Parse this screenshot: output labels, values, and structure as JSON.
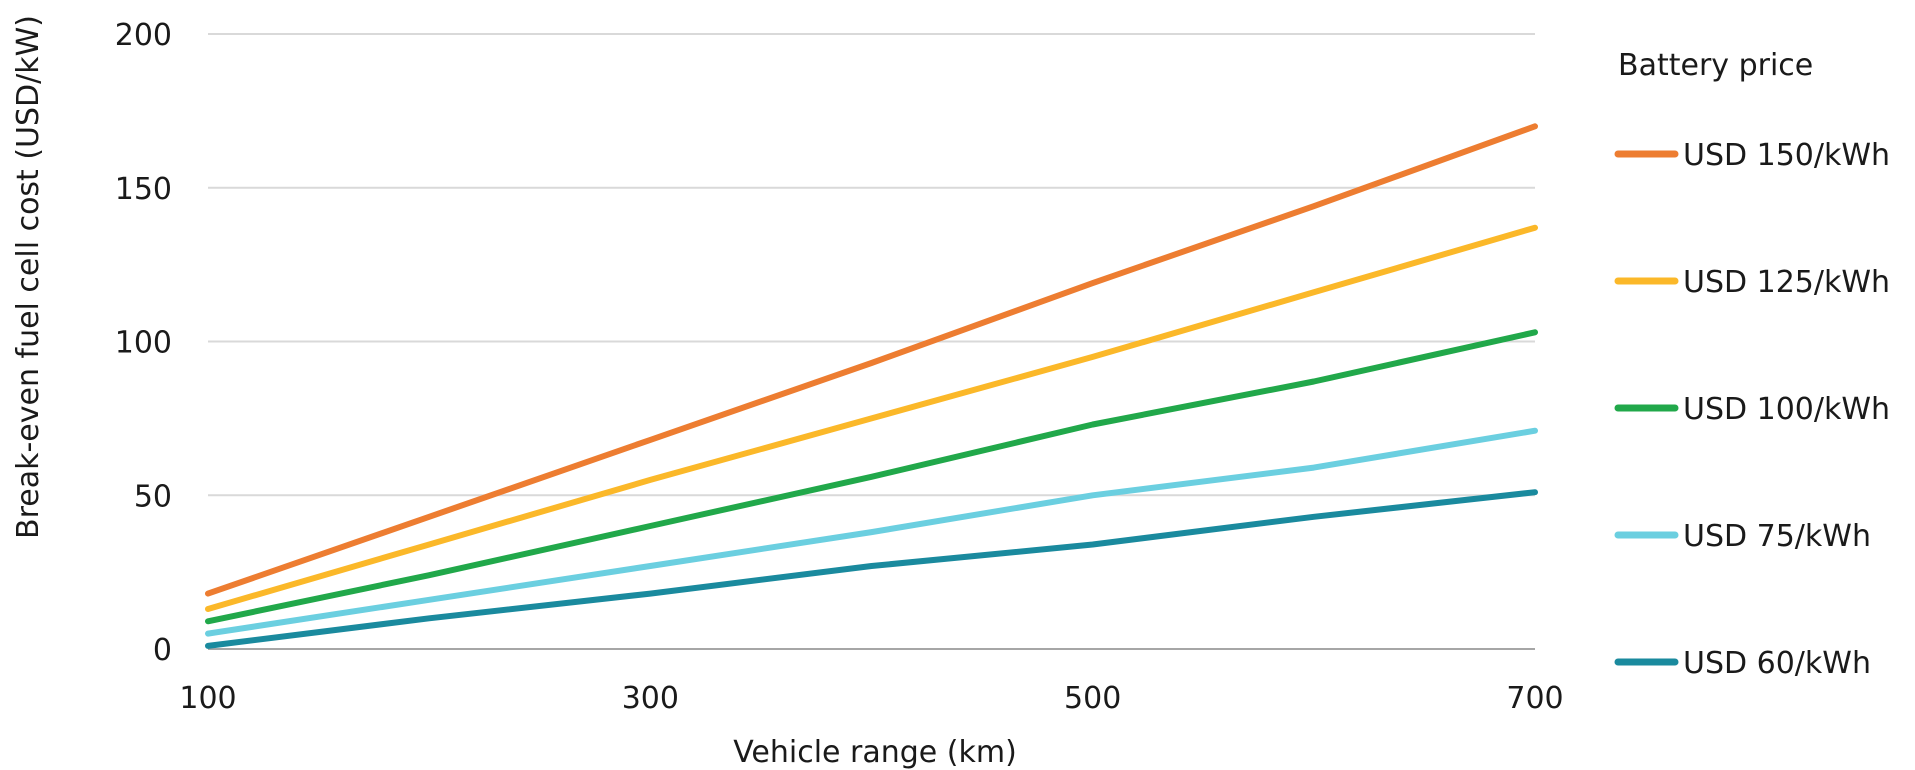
{
  "chart_data": {
    "type": "line",
    "xlabel": "Vehicle range (km)",
    "ylabel": "Break-even fuel cell cost (USD/kW)",
    "x": [
      100,
      200,
      300,
      400,
      500,
      600,
      700
    ],
    "x_ticks": [
      100,
      300,
      500,
      700
    ],
    "y_ticks": [
      0,
      50,
      100,
      150,
      200
    ],
    "xlim": [
      100,
      700
    ],
    "ylim": [
      0,
      200
    ],
    "grid": true,
    "legend_title": "Battery price",
    "legend_position": "right",
    "series": [
      {
        "name": "USD 150/kWh",
        "color": "#ed7d31",
        "values": [
          18,
          43,
          68,
          93,
          119,
          144,
          170
        ]
      },
      {
        "name": "USD 125/kWh",
        "color": "#fbb829",
        "values": [
          13,
          34,
          55,
          75,
          95,
          116,
          137
        ]
      },
      {
        "name": "USD 100/kWh",
        "color": "#21a84a",
        "values": [
          9,
          24,
          40,
          56,
          73,
          87,
          103
        ]
      },
      {
        "name": "USD 75/kWh",
        "color": "#6bcfe0",
        "values": [
          5,
          16,
          27,
          38,
          50,
          59,
          71
        ]
      },
      {
        "name": "USD 60/kWh",
        "color": "#1a8a9e",
        "values": [
          1,
          10,
          18,
          27,
          34,
          43,
          51
        ]
      }
    ]
  }
}
